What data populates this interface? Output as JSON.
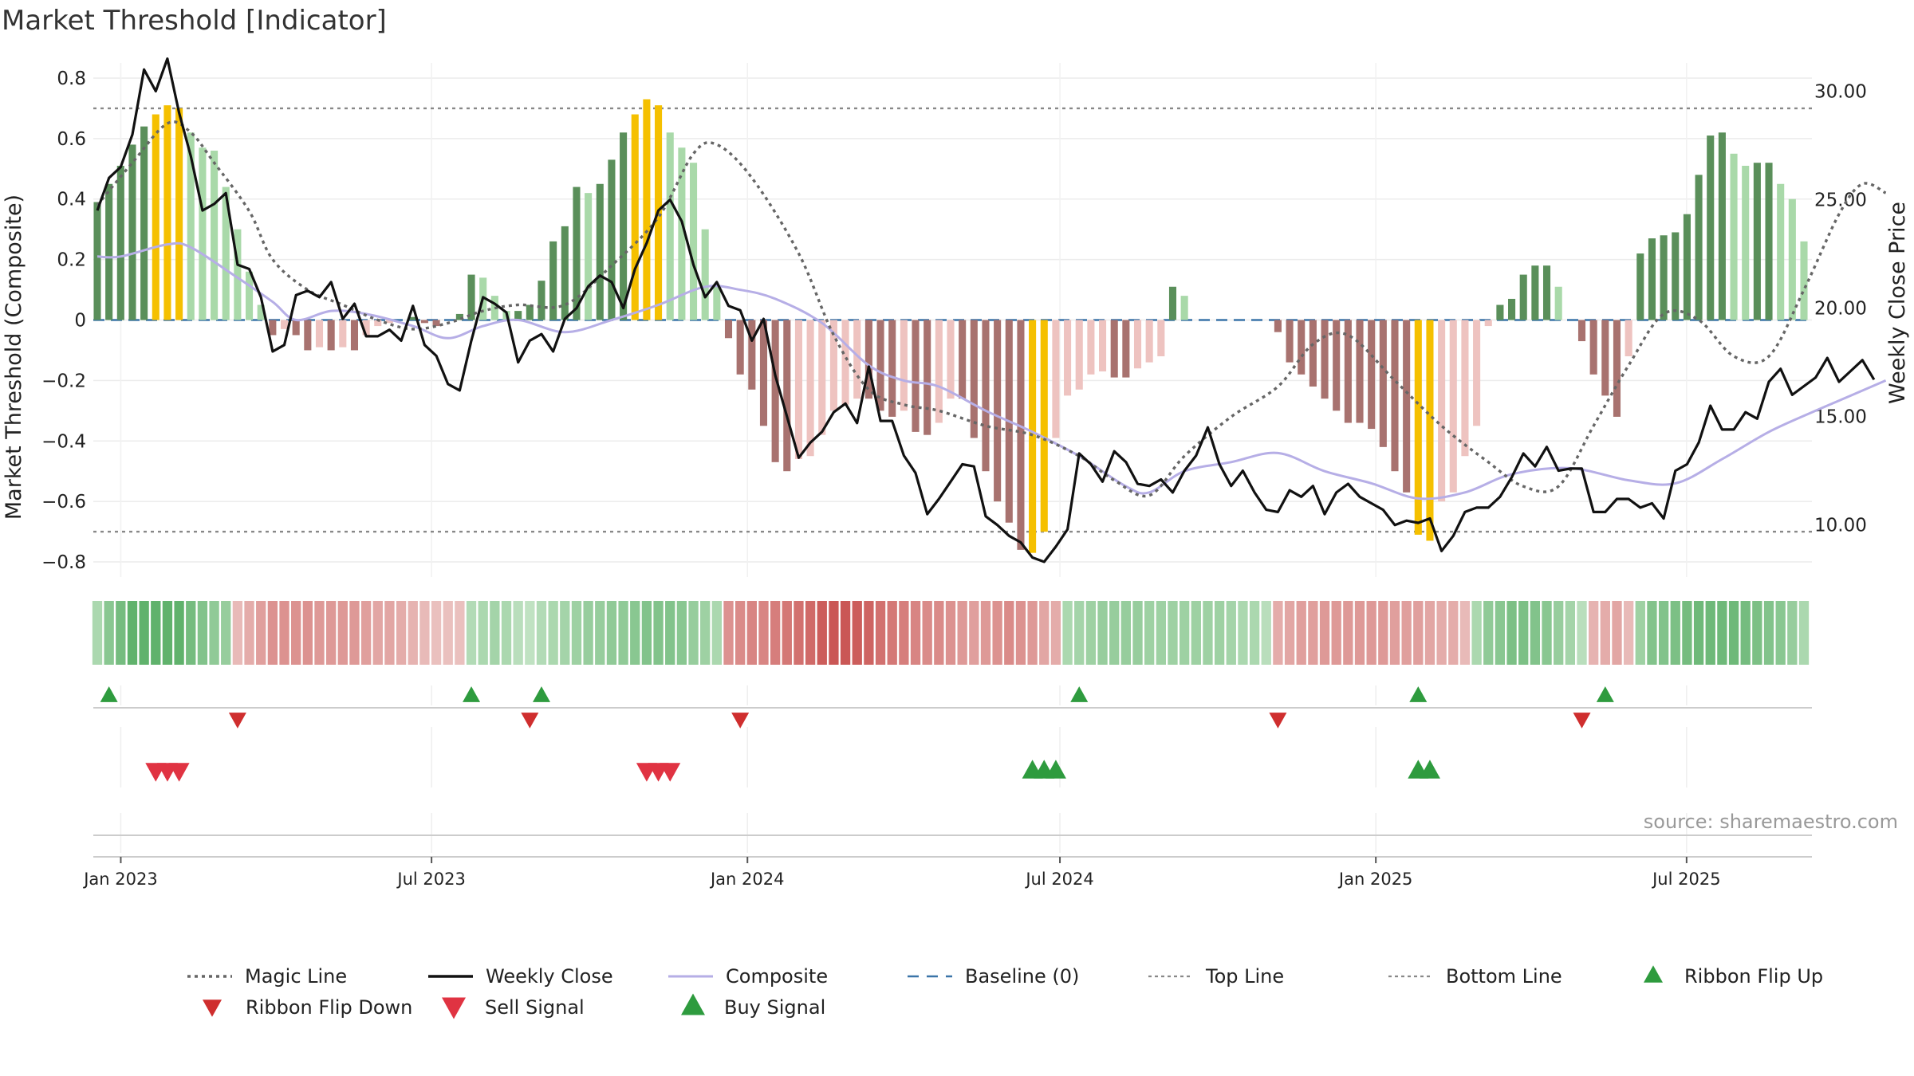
{
  "title": "Market Threshold [Indicator]",
  "source": "source: sharemaestro.com",
  "chart_data": {
    "type": "bar",
    "title": "Market Threshold [Indicator]",
    "ylabel": "Market Threshold (Composite)",
    "y2label": "Weekly Close Price",
    "ylim": [
      -0.85,
      0.85
    ],
    "y2lim": [
      7.6,
      31.3
    ],
    "yticks": [
      -0.8,
      -0.6,
      -0.4,
      -0.2,
      0,
      0.2,
      0.4,
      0.6,
      0.8
    ],
    "yticklabels": [
      "−0.8",
      "−0.6",
      "−0.4",
      "−0.2",
      "0",
      "0.2",
      "0.4",
      "0.6",
      "0.8"
    ],
    "y2ticks": [
      10,
      15,
      20,
      25,
      30
    ],
    "y2ticklabels": [
      "10.00",
      "15.00",
      "20.00",
      "25.00",
      "30.00"
    ],
    "x_start": "2022-12-16",
    "x_end": "2025-09-12",
    "xticks": [
      {
        "date": "2023-01-01",
        "label": "Jan 2023"
      },
      {
        "date": "2023-07-01",
        "label": "Jul 2023"
      },
      {
        "date": "2024-01-01",
        "label": "Jan 2024"
      },
      {
        "date": "2024-07-01",
        "label": "Jul 2024"
      },
      {
        "date": "2025-01-01",
        "label": "Jan 2025"
      },
      {
        "date": "2025-07-01",
        "label": "Jul 2025"
      }
    ],
    "top_line": 0.7,
    "bottom_line": -0.7,
    "grid": true,
    "legend_position": "bottom",
    "colors": {
      "strong_up": "#5a8f5a",
      "weak_up": "#a9d9a9",
      "strong_down": "#a8726f",
      "weak_down": "#eec3c0",
      "extreme": "#f5c000",
      "close": "#111111",
      "composite": "#b6aee6",
      "magic": "#666666",
      "baseline": "#3a74a8",
      "threshold": "#888888",
      "buy": "#2e9b3e",
      "sell": "#e03342",
      "flip_up": "#2e9b3e",
      "flip_down": "#cf2e2e"
    },
    "composite_anchors": [
      [
        0,
        0.21
      ],
      [
        2,
        0.21
      ],
      [
        6,
        0.25
      ],
      [
        8,
        0.24
      ],
      [
        12,
        0.14
      ],
      [
        15,
        0.06
      ],
      [
        17,
        0.0
      ],
      [
        20,
        0.03
      ],
      [
        23,
        0.02
      ],
      [
        27,
        -0.02
      ],
      [
        30,
        -0.06
      ],
      [
        33,
        -0.02
      ],
      [
        36,
        0.0
      ],
      [
        40,
        -0.04
      ],
      [
        44,
        0.0
      ],
      [
        48,
        0.05
      ],
      [
        52,
        0.11
      ],
      [
        55,
        0.1
      ],
      [
        58,
        0.07
      ],
      [
        62,
        -0.01
      ],
      [
        66,
        -0.15
      ],
      [
        69,
        -0.2
      ],
      [
        72,
        -0.22
      ],
      [
        76,
        -0.3
      ],
      [
        80,
        -0.37
      ],
      [
        84,
        -0.45
      ],
      [
        88,
        -0.55
      ],
      [
        90,
        -0.57
      ],
      [
        93,
        -0.5
      ],
      [
        97,
        -0.47
      ],
      [
        101,
        -0.44
      ],
      [
        105,
        -0.5
      ],
      [
        109,
        -0.54
      ],
      [
        113,
        -0.59
      ],
      [
        117,
        -0.57
      ],
      [
        121,
        -0.51
      ],
      [
        126,
        -0.49
      ],
      [
        131,
        -0.53
      ],
      [
        135,
        -0.54
      ],
      [
        139,
        -0.46
      ],
      [
        143,
        -0.37
      ],
      [
        147,
        -0.3
      ],
      [
        150,
        -0.25
      ],
      [
        153,
        -0.2
      ]
    ],
    "magic_anchors": [
      [
        0,
        0.38
      ],
      [
        3,
        0.52
      ],
      [
        6,
        0.65
      ],
      [
        8,
        0.62
      ],
      [
        10,
        0.52
      ],
      [
        13,
        0.36
      ],
      [
        15,
        0.2
      ],
      [
        18,
        0.1
      ],
      [
        21,
        0.05
      ],
      [
        24,
        0.0
      ],
      [
        27,
        -0.03
      ],
      [
        30,
        -0.01
      ],
      [
        33,
        0.03
      ],
      [
        36,
        0.05
      ],
      [
        40,
        0.05
      ],
      [
        44,
        0.18
      ],
      [
        48,
        0.34
      ],
      [
        51,
        0.55
      ],
      [
        53,
        0.58
      ],
      [
        56,
        0.47
      ],
      [
        60,
        0.22
      ],
      [
        63,
        -0.05
      ],
      [
        66,
        -0.23
      ],
      [
        69,
        -0.28
      ],
      [
        72,
        -0.3
      ],
      [
        76,
        -0.35
      ],
      [
        80,
        -0.38
      ],
      [
        84,
        -0.45
      ],
      [
        87,
        -0.53
      ],
      [
        90,
        -0.58
      ],
      [
        93,
        -0.45
      ],
      [
        97,
        -0.32
      ],
      [
        101,
        -0.22
      ],
      [
        104,
        -0.08
      ],
      [
        107,
        -0.05
      ],
      [
        111,
        -0.2
      ],
      [
        115,
        -0.35
      ],
      [
        119,
        -0.47
      ],
      [
        122,
        -0.55
      ],
      [
        125,
        -0.55
      ],
      [
        128,
        -0.35
      ],
      [
        131,
        -0.15
      ],
      [
        134,
        0.02
      ],
      [
        137,
        0.0
      ],
      [
        140,
        -0.12
      ],
      [
        143,
        -0.12
      ],
      [
        146,
        0.1
      ],
      [
        149,
        0.35
      ],
      [
        151,
        0.45
      ],
      [
        153,
        0.42
      ]
    ],
    "close_anchors": [
      [
        0,
        24.5
      ],
      [
        1,
        26.0
      ],
      [
        2,
        26.5
      ],
      [
        3,
        28.0
      ],
      [
        4,
        31.0
      ],
      [
        5,
        30.0
      ],
      [
        6,
        31.5
      ],
      [
        7,
        29.0
      ],
      [
        8,
        27.0
      ],
      [
        9,
        24.5
      ],
      [
        10,
        24.8
      ],
      [
        11,
        25.3
      ],
      [
        12,
        22.0
      ],
      [
        13,
        21.8
      ],
      [
        14,
        20.5
      ],
      [
        15,
        18.0
      ],
      [
        16,
        18.3
      ],
      [
        17,
        20.6
      ],
      [
        18,
        20.8
      ],
      [
        19,
        20.5
      ],
      [
        20,
        21.2
      ],
      [
        21,
        19.5
      ],
      [
        22,
        20.2
      ],
      [
        23,
        18.7
      ],
      [
        24,
        18.7
      ],
      [
        25,
        19.0
      ],
      [
        26,
        18.5
      ],
      [
        27,
        20.1
      ],
      [
        28,
        18.3
      ],
      [
        29,
        17.8
      ],
      [
        30,
        16.5
      ],
      [
        31,
        16.2
      ],
      [
        32,
        18.5
      ],
      [
        33,
        20.5
      ],
      [
        34,
        20.2
      ],
      [
        35,
        19.8
      ],
      [
        36,
        17.5
      ],
      [
        37,
        18.5
      ],
      [
        38,
        18.8
      ],
      [
        39,
        18.0
      ],
      [
        40,
        19.5
      ],
      [
        41,
        20.0
      ],
      [
        42,
        21.0
      ],
      [
        43,
        21.5
      ],
      [
        44,
        21.2
      ],
      [
        45,
        20.0
      ],
      [
        46,
        21.8
      ],
      [
        47,
        23.0
      ],
      [
        48,
        24.5
      ],
      [
        49,
        25.0
      ],
      [
        50,
        24.0
      ],
      [
        51,
        22.0
      ],
      [
        52,
        20.5
      ],
      [
        53,
        21.2
      ],
      [
        54,
        20.1
      ],
      [
        55,
        19.9
      ],
      [
        56,
        18.5
      ],
      [
        57,
        19.5
      ],
      [
        58,
        16.9
      ],
      [
        59,
        15.0
      ],
      [
        60,
        13.1
      ],
      [
        61,
        13.8
      ],
      [
        62,
        14.3
      ],
      [
        63,
        15.2
      ],
      [
        64,
        15.6
      ],
      [
        65,
        14.7
      ],
      [
        66,
        17.3
      ],
      [
        67,
        14.8
      ],
      [
        68,
        14.8
      ],
      [
        69,
        13.2
      ],
      [
        70,
        12.4
      ],
      [
        71,
        10.5
      ],
      [
        72,
        11.2
      ],
      [
        73,
        12.0
      ],
      [
        74,
        12.8
      ],
      [
        75,
        12.7
      ],
      [
        76,
        10.4
      ],
      [
        77,
        10.0
      ],
      [
        78,
        9.5
      ],
      [
        79,
        9.2
      ],
      [
        80,
        8.5
      ],
      [
        81,
        8.3
      ],
      [
        82,
        9.0
      ],
      [
        83,
        9.8
      ],
      [
        84,
        13.3
      ],
      [
        85,
        12.8
      ],
      [
        86,
        12.0
      ],
      [
        87,
        13.4
      ],
      [
        88,
        12.9
      ],
      [
        89,
        11.9
      ],
      [
        90,
        11.8
      ],
      [
        91,
        12.1
      ],
      [
        92,
        11.5
      ],
      [
        93,
        12.5
      ],
      [
        94,
        13.2
      ],
      [
        95,
        14.5
      ],
      [
        96,
        12.8
      ],
      [
        97,
        11.8
      ],
      [
        98,
        12.5
      ],
      [
        99,
        11.5
      ],
      [
        100,
        10.7
      ],
      [
        101,
        10.6
      ],
      [
        102,
        11.6
      ],
      [
        103,
        11.3
      ],
      [
        104,
        11.8
      ],
      [
        105,
        10.5
      ],
      [
        106,
        11.5
      ],
      [
        107,
        11.9
      ],
      [
        108,
        11.3
      ],
      [
        109,
        11.0
      ],
      [
        110,
        10.7
      ],
      [
        111,
        10.0
      ],
      [
        112,
        10.2
      ],
      [
        113,
        10.1
      ],
      [
        114,
        10.3
      ],
      [
        115,
        8.8
      ],
      [
        116,
        9.5
      ],
      [
        117,
        10.6
      ],
      [
        118,
        10.8
      ],
      [
        119,
        10.8
      ],
      [
        120,
        11.3
      ],
      [
        121,
        12.2
      ],
      [
        122,
        13.3
      ],
      [
        123,
        12.7
      ],
      [
        124,
        13.6
      ],
      [
        125,
        12.5
      ],
      [
        126,
        12.6
      ],
      [
        127,
        12.6
      ],
      [
        128,
        10.6
      ],
      [
        129,
        10.6
      ],
      [
        130,
        11.2
      ],
      [
        131,
        11.2
      ],
      [
        132,
        10.8
      ],
      [
        133,
        11.0
      ],
      [
        134,
        10.3
      ],
      [
        135,
        12.5
      ],
      [
        136,
        12.8
      ],
      [
        137,
        13.8
      ],
      [
        138,
        15.5
      ],
      [
        139,
        14.4
      ],
      [
        140,
        14.4
      ],
      [
        141,
        15.2
      ],
      [
        142,
        14.9
      ],
      [
        143,
        16.6
      ],
      [
        144,
        17.2
      ],
      [
        145,
        16.0
      ],
      [
        146,
        16.4
      ],
      [
        147,
        16.8
      ],
      [
        148,
        17.7
      ],
      [
        149,
        16.6
      ],
      [
        150,
        17.1
      ],
      [
        151,
        17.6
      ],
      [
        152,
        16.7
      ]
    ],
    "bar_values": [
      0.39,
      0.45,
      0.51,
      0.58,
      0.64,
      0.68,
      0.71,
      0.7,
      0.62,
      0.57,
      0.56,
      0.44,
      0.3,
      0.16,
      0.05,
      -0.05,
      -0.03,
      -0.05,
      -0.1,
      -0.09,
      -0.1,
      -0.09,
      -0.1,
      -0.05,
      -0.02,
      -0.01,
      0.0,
      0.01,
      -0.01,
      -0.02,
      0.0,
      0.02,
      0.15,
      0.14,
      0.08,
      0.03,
      0.03,
      0.05,
      0.13,
      0.26,
      0.31,
      0.44,
      0.42,
      0.45,
      0.53,
      0.62,
      0.68,
      0.73,
      0.71,
      0.62,
      0.57,
      0.52,
      0.3,
      0.11,
      -0.06,
      -0.18,
      -0.23,
      -0.35,
      -0.47,
      -0.5,
      -0.46,
      -0.45,
      -0.38,
      -0.3,
      -0.28,
      -0.26,
      -0.26,
      -0.3,
      -0.32,
      -0.3,
      -0.37,
      -0.38,
      -0.34,
      -0.26,
      -0.26,
      -0.39,
      -0.5,
      -0.6,
      -0.67,
      -0.76,
      -0.77,
      -0.7,
      -0.39,
      -0.25,
      -0.23,
      -0.18,
      -0.17,
      -0.19,
      -0.19,
      -0.16,
      -0.14,
      -0.12,
      0.11,
      0.08,
      0.0,
      0.0,
      0.0,
      0.0,
      0.0,
      0.0,
      0.0,
      -0.04,
      -0.14,
      -0.18,
      -0.22,
      -0.26,
      -0.3,
      -0.34,
      -0.34,
      -0.36,
      -0.42,
      -0.5,
      -0.57,
      -0.71,
      -0.73,
      -0.6,
      -0.57,
      -0.45,
      -0.35,
      -0.02,
      0.05,
      0.07,
      0.15,
      0.18,
      0.18,
      0.11,
      0.0,
      -0.07,
      -0.18,
      -0.25,
      -0.32,
      -0.12,
      0.22,
      0.27,
      0.28,
      0.29,
      0.35,
      0.48,
      0.61,
      0.62,
      0.55,
      0.51,
      0.52,
      0.52,
      0.45,
      0.4,
      0.26
    ],
    "extreme_indices": [
      5,
      6,
      7,
      46,
      47,
      48,
      80,
      81,
      113,
      114
    ],
    "ribbon_values": [
      0.3,
      0.55,
      0.7,
      0.85,
      0.85,
      0.85,
      0.85,
      0.85,
      0.7,
      0.6,
      0.5,
      0.45,
      -0.2,
      -0.3,
      -0.4,
      -0.5,
      -0.5,
      -0.5,
      -0.5,
      -0.45,
      -0.45,
      -0.45,
      -0.45,
      -0.4,
      -0.35,
      -0.35,
      -0.3,
      -0.25,
      -0.2,
      -0.15,
      -0.15,
      -0.15,
      0.25,
      0.3,
      0.35,
      0.3,
      0.2,
      0.15,
      0.25,
      0.3,
      0.35,
      0.4,
      0.45,
      0.45,
      0.5,
      0.5,
      0.55,
      0.6,
      0.6,
      0.6,
      0.55,
      0.45,
      0.4,
      0.3,
      -0.5,
      -0.55,
      -0.6,
      -0.6,
      -0.65,
      -0.7,
      -0.75,
      -0.8,
      -0.9,
      -0.95,
      -0.95,
      -0.9,
      -0.85,
      -0.75,
      -0.7,
      -0.65,
      -0.6,
      -0.55,
      -0.55,
      -0.5,
      -0.45,
      -0.4,
      -0.45,
      -0.5,
      -0.55,
      -0.5,
      -0.45,
      -0.35,
      -0.3,
      0.3,
      0.35,
      0.4,
      0.45,
      0.45,
      0.45,
      0.45,
      0.4,
      0.4,
      0.4,
      0.4,
      0.4,
      0.4,
      0.4,
      0.35,
      0.3,
      0.3,
      0.2,
      -0.3,
      -0.35,
      -0.4,
      -0.4,
      -0.45,
      -0.45,
      -0.45,
      -0.45,
      -0.45,
      -0.45,
      -0.4,
      -0.4,
      -0.4,
      -0.35,
      -0.3,
      -0.3,
      -0.2,
      0.3,
      0.5,
      0.55,
      0.65,
      0.65,
      0.6,
      0.55,
      0.45,
      0.35,
      0.2,
      -0.25,
      -0.3,
      -0.35,
      -0.2,
      0.4,
      0.6,
      0.6,
      0.65,
      0.7,
      0.75,
      0.75,
      0.75,
      0.75,
      0.7,
      0.65,
      0.6,
      0.55,
      0.45,
      0.3
    ],
    "ribbon_flip_up": [
      1,
      32,
      38,
      84,
      113,
      129
    ],
    "ribbon_flip_down": [
      12,
      37,
      55,
      101,
      127
    ],
    "buy_signals": [
      80,
      81,
      82,
      113,
      114
    ],
    "sell_signals": [
      5,
      6,
      7,
      47,
      48,
      49
    ]
  },
  "legend": [
    {
      "label": "Magic Line",
      "kind": "dotted",
      "color": "#666666"
    },
    {
      "label": "Weekly Close",
      "kind": "solid",
      "color": "#111111"
    },
    {
      "label": "Composite",
      "kind": "solid-light",
      "color": "#b6aee6"
    },
    {
      "label": "Baseline (0)",
      "kind": "dashed",
      "color": "#3a74a8"
    },
    {
      "label": "Top Line",
      "kind": "dotted-thin",
      "color": "#888888"
    },
    {
      "label": "Bottom Line",
      "kind": "dotted-thin",
      "color": "#888888"
    },
    {
      "label": "Ribbon Flip Up",
      "kind": "tri-up",
      "color": "#2e9b3e"
    },
    {
      "label": "Ribbon Flip Down",
      "kind": "tri-down",
      "color": "#cf2e2e"
    },
    {
      "label": "Sell Signal",
      "kind": "tri-down-big",
      "color": "#e03342"
    },
    {
      "label": "Buy Signal",
      "kind": "tri-up-big",
      "color": "#2e9b3e"
    }
  ]
}
